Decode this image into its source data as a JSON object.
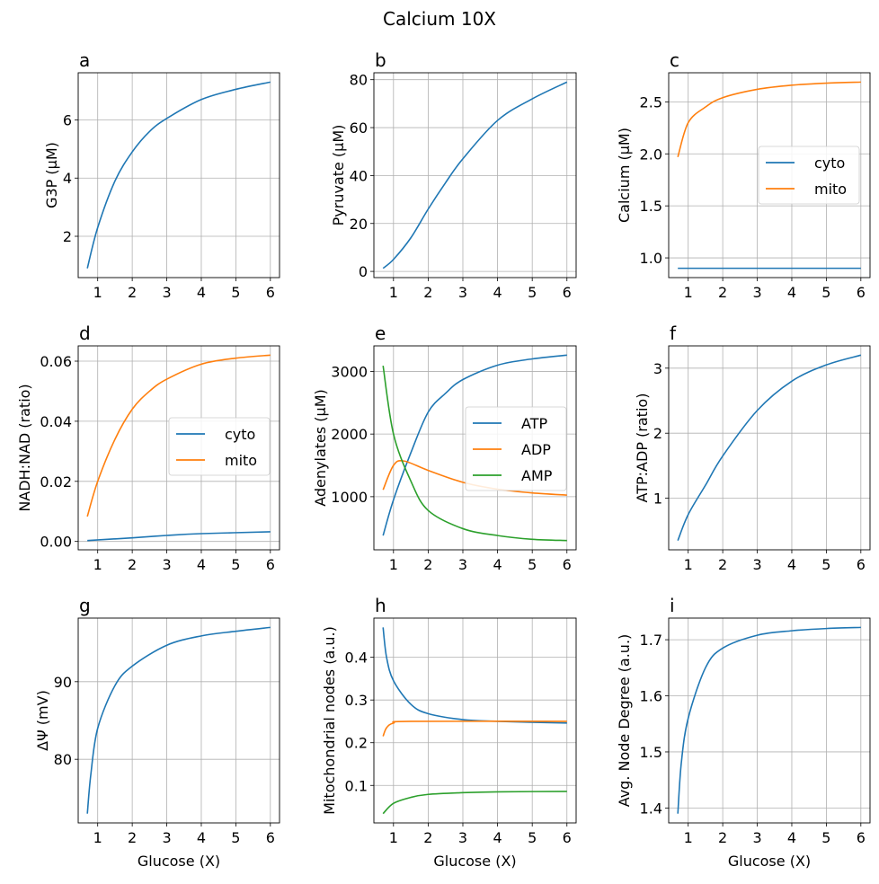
{
  "suptitle": "Calcium 10X",
  "colors": {
    "C0": "#1f77b4",
    "C1": "#ff7f0e",
    "C2": "#2ca02c",
    "grid": "#b0b0b0"
  },
  "chart_data": [
    {
      "panel": "a",
      "type": "line",
      "ylabel": "G3P (μM)",
      "xlabel": "",
      "xticks": [
        "1",
        "2",
        "3",
        "4",
        "5",
        "6"
      ],
      "yticks": [
        "2",
        "4",
        "6"
      ],
      "ytick_values": [
        2,
        4,
        6
      ],
      "grid": true,
      "series": [
        {
          "color": "C0",
          "x": [
            0.7,
            1,
            1.5,
            2,
            2.5,
            3,
            4,
            5,
            6
          ],
          "y": [
            0.9,
            2.3,
            3.9,
            4.9,
            5.6,
            6.05,
            6.7,
            7.05,
            7.3
          ]
        }
      ]
    },
    {
      "panel": "b",
      "type": "line",
      "ylabel": "Pyruvate (μM)",
      "xlabel": "",
      "xticks": [
        "1",
        "2",
        "3",
        "4",
        "5",
        "6"
      ],
      "yticks": [
        "0",
        "20",
        "40",
        "60",
        "80"
      ],
      "ytick_values": [
        0,
        20,
        40,
        60,
        80
      ],
      "grid": true,
      "series": [
        {
          "color": "C0",
          "x": [
            0.7,
            1,
            1.5,
            2,
            2.5,
            3,
            4,
            5,
            6
          ],
          "y": [
            1.3,
            5,
            14,
            26,
            37,
            47,
            63,
            72,
            79
          ]
        }
      ]
    },
    {
      "panel": "c",
      "type": "line",
      "ylabel": "Calcium (μM)",
      "xlabel": "",
      "xticks": [
        "1",
        "2",
        "3",
        "4",
        "5",
        "6"
      ],
      "yticks": [
        "1.0",
        "1.5",
        "2.0",
        "2.5"
      ],
      "ytick_values": [
        1.0,
        1.5,
        2.0,
        2.5
      ],
      "grid": true,
      "legend": "center-right",
      "series": [
        {
          "name": "cyto",
          "color": "C0",
          "x": [
            0.7,
            6
          ],
          "y": [
            0.9,
            0.9
          ]
        },
        {
          "name": "mito",
          "color": "C1",
          "x": [
            0.7,
            1,
            1.5,
            2,
            3,
            4,
            5,
            6
          ],
          "y": [
            1.97,
            2.3,
            2.45,
            2.54,
            2.62,
            2.66,
            2.68,
            2.69
          ]
        }
      ]
    },
    {
      "panel": "d",
      "type": "line",
      "ylabel": "NADH:NAD (ratio)",
      "xlabel": "",
      "xticks": [
        "1",
        "2",
        "3",
        "4",
        "5",
        "6"
      ],
      "yticks": [
        "0.00",
        "0.02",
        "0.04",
        "0.06"
      ],
      "ytick_values": [
        0,
        0.02,
        0.04,
        0.06
      ],
      "grid": true,
      "legend": "center-right",
      "series": [
        {
          "name": "cyto",
          "color": "C0",
          "x": [
            0.7,
            2,
            3,
            4,
            6
          ],
          "y": [
            0.0003,
            0.0012,
            0.002,
            0.0026,
            0.0032
          ]
        },
        {
          "name": "mito",
          "color": "C1",
          "x": [
            0.7,
            1,
            1.5,
            2,
            2.5,
            3,
            4,
            5,
            6
          ],
          "y": [
            0.0083,
            0.02,
            0.034,
            0.044,
            0.05,
            0.054,
            0.059,
            0.061,
            0.062
          ]
        }
      ]
    },
    {
      "panel": "e",
      "type": "line",
      "ylabel": "Adenylates (μM)",
      "xlabel": "",
      "xticks": [
        "1",
        "2",
        "3",
        "4",
        "5",
        "6"
      ],
      "yticks": [
        "1000",
        "2000",
        "3000"
      ],
      "ytick_values": [
        1000,
        2000,
        3000
      ],
      "grid": true,
      "legend": "center-right",
      "series": [
        {
          "name": "ATP",
          "color": "C0",
          "x": [
            0.7,
            1,
            1.5,
            2,
            2.5,
            3,
            4,
            5,
            6
          ],
          "y": [
            380,
            950,
            1700,
            2350,
            2650,
            2870,
            3100,
            3200,
            3260
          ]
        },
        {
          "name": "ADP",
          "color": "C1",
          "x": [
            0.7,
            1,
            1.3,
            2,
            3,
            4,
            5,
            6
          ],
          "y": [
            1110,
            1500,
            1570,
            1420,
            1230,
            1120,
            1060,
            1025
          ]
        },
        {
          "name": "AMP",
          "color": "C2",
          "x": [
            0.7,
            1,
            1.5,
            2,
            3,
            4,
            5,
            6
          ],
          "y": [
            3090,
            2000,
            1250,
            780,
            490,
            380,
            320,
            300
          ]
        }
      ]
    },
    {
      "panel": "f",
      "type": "line",
      "ylabel": "ATP:ADP (ratio)",
      "xlabel": "",
      "xticks": [
        "1",
        "2",
        "3",
        "4",
        "5",
        "6"
      ],
      "yticks": [
        "1",
        "2",
        "3"
      ],
      "ytick_values": [
        1,
        2,
        3
      ],
      "grid": true,
      "series": [
        {
          "color": "C0",
          "x": [
            0.7,
            1,
            1.5,
            2,
            3,
            4,
            5,
            6
          ],
          "y": [
            0.35,
            0.75,
            1.2,
            1.65,
            2.35,
            2.8,
            3.05,
            3.2
          ]
        }
      ]
    },
    {
      "panel": "g",
      "type": "line",
      "ylabel": "ΔΨ (mV)",
      "xlabel": "Glucose (X)",
      "xticks": [
        "1",
        "2",
        "3",
        "4",
        "5",
        "6"
      ],
      "yticks": [
        "80",
        "90"
      ],
      "ytick_values": [
        80,
        90
      ],
      "grid": true,
      "series": [
        {
          "color": "C0",
          "x": [
            0.7,
            0.8,
            1,
            1.5,
            2,
            3,
            4,
            5,
            6
          ],
          "y": [
            73,
            78,
            84,
            89.5,
            92,
            94.7,
            95.9,
            96.5,
            97
          ]
        }
      ]
    },
    {
      "panel": "h",
      "type": "line",
      "ylabel": "Mitochondrial nodes (a.u.)",
      "xlabel": "Glucose (X)",
      "xticks": [
        "1",
        "2",
        "3",
        "4",
        "5",
        "6"
      ],
      "yticks": [
        "0.1",
        "0.2",
        "0.3",
        "0.4"
      ],
      "ytick_values": [
        0.1,
        0.2,
        0.3,
        0.4
      ],
      "grid": true,
      "series": [
        {
          "color": "C0",
          "x": [
            0.7,
            0.8,
            1,
            1.5,
            2,
            3,
            4,
            6
          ],
          "y": [
            0.47,
            0.4,
            0.345,
            0.29,
            0.268,
            0.254,
            0.25,
            0.246
          ]
        },
        {
          "color": "C1",
          "x": [
            0.7,
            0.8,
            1,
            1.5,
            6
          ],
          "y": [
            0.215,
            0.235,
            0.246,
            0.25,
            0.25
          ]
        },
        {
          "color": "C2",
          "x": [
            0.7,
            1,
            1.5,
            2,
            3,
            4,
            6
          ],
          "y": [
            0.034,
            0.058,
            0.072,
            0.079,
            0.083,
            0.085,
            0.086
          ]
        }
      ]
    },
    {
      "panel": "i",
      "type": "line",
      "ylabel": "Avg. Node Degree (a.u.)",
      "xlabel": "Glucose (X)",
      "xticks": [
        "1",
        "2",
        "3",
        "4",
        "5",
        "6"
      ],
      "yticks": [
        "1.4",
        "1.5",
        "1.6",
        "1.7"
      ],
      "ytick_values": [
        1.4,
        1.5,
        1.6,
        1.7
      ],
      "grid": true,
      "series": [
        {
          "color": "C0",
          "x": [
            0.7,
            0.8,
            1,
            1.5,
            2,
            3,
            4,
            5,
            6
          ],
          "y": [
            1.39,
            1.48,
            1.56,
            1.65,
            1.685,
            1.708,
            1.716,
            1.72,
            1.722
          ]
        }
      ]
    }
  ]
}
